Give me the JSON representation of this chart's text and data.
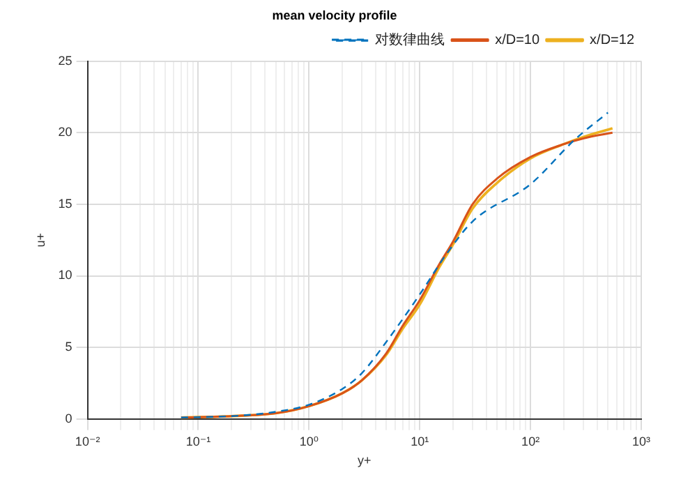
{
  "chart_data": {
    "type": "line",
    "title": "mean velocity profile",
    "xlabel": "y+",
    "ylabel": "u+",
    "log": "x",
    "grid": true,
    "legend": "top right",
    "xlim": [
      0.01,
      1000
    ],
    "ylim": [
      0,
      25
    ],
    "xticks": [
      {
        "value": 0.01,
        "label": "10⁻²"
      },
      {
        "value": 0.02,
        "label": null
      },
      {
        "value": 0.03,
        "label": null
      },
      {
        "value": 0.04,
        "label": null
      },
      {
        "value": 0.05,
        "label": null
      },
      {
        "value": 0.06,
        "label": null
      },
      {
        "value": 0.07,
        "label": null
      },
      {
        "value": 0.08,
        "label": null
      },
      {
        "value": 0.09,
        "label": null
      },
      {
        "value": 0.1,
        "label": "10⁻¹"
      },
      {
        "value": 0.2,
        "label": null
      },
      {
        "value": 0.3,
        "label": null
      },
      {
        "value": 0.4,
        "label": null
      },
      {
        "value": 0.5,
        "label": null
      },
      {
        "value": 0.6,
        "label": null
      },
      {
        "value": 0.7,
        "label": null
      },
      {
        "value": 0.8,
        "label": null
      },
      {
        "value": 0.9,
        "label": null
      },
      {
        "value": 1,
        "label": "10⁰"
      },
      {
        "value": 2,
        "label": null
      },
      {
        "value": 3,
        "label": null
      },
      {
        "value": 4,
        "label": null
      },
      {
        "value": 5,
        "label": null
      },
      {
        "value": 6,
        "label": null
      },
      {
        "value": 7,
        "label": null
      },
      {
        "value": 8,
        "label": null
      },
      {
        "value": 9,
        "label": null
      },
      {
        "value": 10,
        "label": "10¹"
      },
      {
        "value": 20,
        "label": null
      },
      {
        "value": 30,
        "label": null
      },
      {
        "value": 40,
        "label": null
      },
      {
        "value": 50,
        "label": null
      },
      {
        "value": 60,
        "label": null
      },
      {
        "value": 70,
        "label": null
      },
      {
        "value": 80,
        "label": null
      },
      {
        "value": 90,
        "label": null
      },
      {
        "value": 100,
        "label": "10²"
      },
      {
        "value": 200,
        "label": null
      },
      {
        "value": 300,
        "label": null
      },
      {
        "value": 400,
        "label": null
      },
      {
        "value": 500,
        "label": null
      },
      {
        "value": 600,
        "label": null
      },
      {
        "value": 700,
        "label": null
      },
      {
        "value": 800,
        "label": null
      },
      {
        "value": 900,
        "label": null
      },
      {
        "value": 1000,
        "label": "10³"
      }
    ],
    "yticks": [
      0,
      5,
      10,
      15,
      20,
      25
    ],
    "series": [
      {
        "name": "对数律曲线",
        "color": "#0072bd",
        "line_style": "dashed",
        "x": [
          0.07,
          0.2,
          0.5,
          1,
          2,
          3,
          5,
          10,
          17,
          30,
          100,
          250,
          500
        ],
        "values": [
          0.1,
          0.2,
          0.5,
          1,
          2.1,
          3.2,
          5.4,
          8.7,
          11.4,
          13.8,
          16.4,
          19.5,
          21.4
        ]
      },
      {
        "name": "x/D=10",
        "color": "#d95319",
        "line_style": "solid",
        "x": [
          0.07,
          0.2,
          0.5,
          1,
          2,
          3,
          5,
          7,
          10,
          15,
          20,
          30,
          50,
          100,
          200,
          300,
          550
        ],
        "values": [
          0.1,
          0.2,
          0.4,
          0.9,
          1.8,
          2.7,
          4.6,
          6.5,
          8.3,
          10.8,
          12.4,
          15,
          16.8,
          18.3,
          19.2,
          19.6,
          20
        ]
      },
      {
        "name": "x/D=12",
        "color": "#edb120",
        "line_style": "solid",
        "x": [
          0.07,
          0.2,
          0.5,
          1,
          2,
          3,
          5,
          7,
          10,
          15,
          20,
          30,
          50,
          100,
          200,
          300,
          550
        ],
        "values": [
          0.1,
          0.2,
          0.4,
          0.9,
          1.8,
          2.7,
          4.5,
          6.3,
          8,
          10.6,
          12.2,
          14.7,
          16.5,
          18.2,
          19.2,
          19.7,
          20.3
        ]
      }
    ]
  }
}
